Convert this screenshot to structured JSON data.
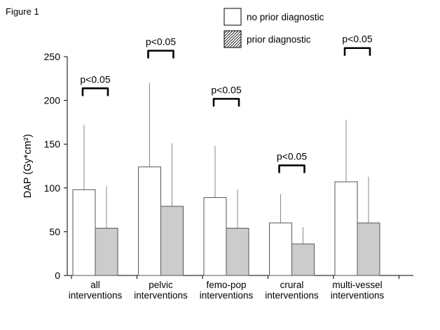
{
  "figure_label": "Figure 1",
  "chart_data": {
    "type": "bar",
    "title": "",
    "xlabel": "",
    "ylabel": "DAP (Gy*cm²)",
    "ylim": [
      0,
      250
    ],
    "yticks": [
      0,
      50,
      100,
      150,
      200,
      250
    ],
    "grid": false,
    "legend_position": "top-right",
    "categories": [
      [
        "all",
        "interventions"
      ],
      [
        "pelvic",
        "interventions"
      ],
      [
        "femo-pop",
        "interventions"
      ],
      [
        "crural",
        "interventions"
      ],
      [
        "multi-vessel",
        "interventions"
      ]
    ],
    "series": [
      {
        "name": "no prior diagnostic",
        "values": [
          98,
          124,
          89,
          60,
          107
        ],
        "error_upper": [
          172,
          220,
          148,
          93,
          178
        ],
        "fill": "#ffffff",
        "pattern": "none"
      },
      {
        "name": "prior diagnostic",
        "values": [
          54,
          79,
          54,
          36,
          60
        ],
        "error_upper": [
          102,
          151,
          98,
          55,
          113
        ],
        "fill": "#cccccc",
        "pattern": "diagonal-hatch"
      }
    ],
    "annotations": [
      {
        "text": "p<0.05",
        "category_index": 0,
        "value": 205
      },
      {
        "text": "p<0.05",
        "category_index": 1,
        "value": 248
      },
      {
        "text": "p<0.05",
        "category_index": 2,
        "value": 193
      },
      {
        "text": "p<0.05",
        "category_index": 3,
        "value": 117
      },
      {
        "text": "p<0.05",
        "category_index": 4,
        "value": 251
      }
    ]
  }
}
